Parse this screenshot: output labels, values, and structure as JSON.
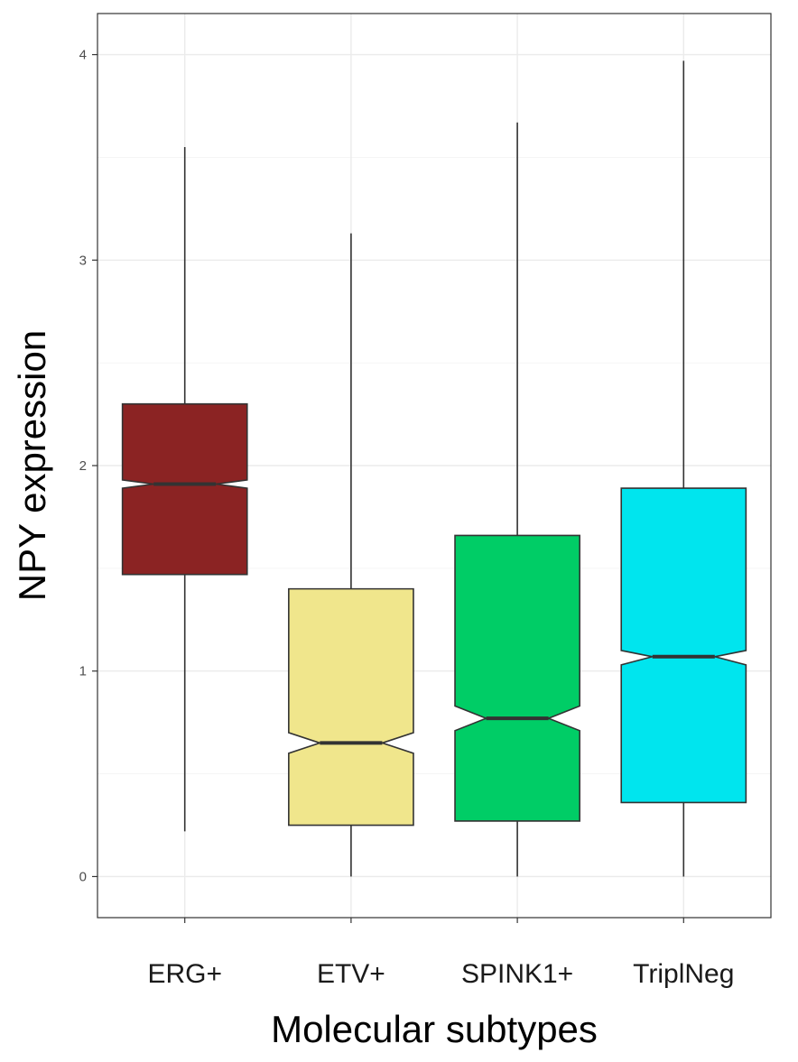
{
  "chart_data": {
    "type": "box",
    "notched": true,
    "title": "",
    "xlabel": "Molecular subtypes",
    "ylabel": "NPY expression",
    "ylim": [
      -0.2,
      4.2
    ],
    "yticks": [
      0,
      1,
      2,
      3,
      4
    ],
    "grid": true,
    "legend": "none",
    "categories": [
      "ERG+",
      "ETV+",
      "SPINK1+",
      "TriplNeg"
    ],
    "boxes": [
      {
        "category": "ERG+",
        "min": 0.22,
        "q1": 1.47,
        "median": 1.91,
        "q3": 2.3,
        "max": 3.55,
        "notch_low": 1.89,
        "notch_high": 1.93,
        "color": "#8b2323"
      },
      {
        "category": "ETV+",
        "min": 0.0,
        "q1": 0.25,
        "median": 0.65,
        "q3": 1.4,
        "max": 3.13,
        "notch_low": 0.6,
        "notch_high": 0.7,
        "color": "#f0e68c"
      },
      {
        "category": "SPINK1+",
        "min": 0.0,
        "q1": 0.27,
        "median": 0.77,
        "q3": 1.66,
        "max": 3.67,
        "notch_low": 0.71,
        "notch_high": 0.83,
        "color": "#00cd66"
      },
      {
        "category": "TriplNeg",
        "min": 0.0,
        "q1": 0.36,
        "median": 1.07,
        "q3": 1.89,
        "max": 3.97,
        "notch_low": 1.03,
        "notch_high": 1.1,
        "color": "#00e5ee"
      }
    ]
  }
}
